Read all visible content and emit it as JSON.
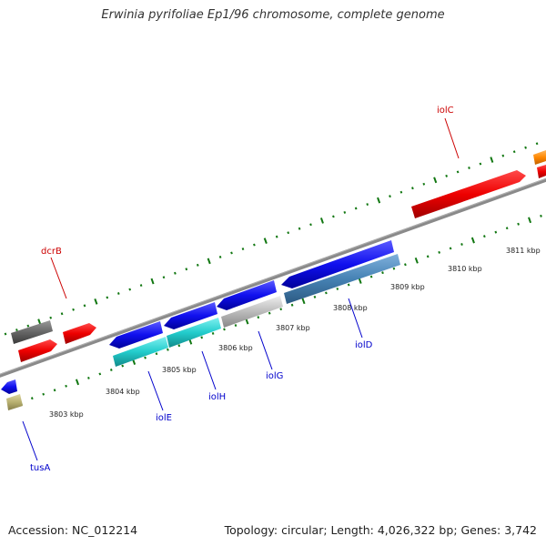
{
  "title": "Erwinia pyrifoliae Ep1/96 chromosome, complete genome",
  "footer": {
    "accession_label": "Accession:",
    "accession": "NC_012214",
    "topology_label": "Topology:",
    "topology": "circular",
    "length_label": "Length:",
    "length": "4,026,322 bp",
    "genes_label": "Genes:",
    "genes": "3,742"
  },
  "axis": {
    "tick_labels": [
      "3803 kbp",
      "3804 kbp",
      "3805 kbp",
      "3806 kbp",
      "3807 kbp",
      "3808 kbp",
      "3809 kbp",
      "3810 kbp",
      "3811 kbp"
    ]
  },
  "genes": [
    {
      "label": "iolC",
      "color": "#cc0000"
    },
    {
      "label": "dcrB",
      "color": "#cc0000"
    },
    {
      "label": "iolE",
      "color": "#0000aa"
    },
    {
      "label": "iolH",
      "color": "#0000aa"
    },
    {
      "label": "iolG",
      "color": "#0000aa"
    },
    {
      "label": "iolD",
      "color": "#0000aa"
    },
    {
      "label": "tusA",
      "color": "#0000aa"
    }
  ],
  "colors": {
    "forward_strand": "#ff0000",
    "reverse_strand": "#0000ee",
    "cyan_feature": "#22cccc",
    "steelblue_feature": "#4682b4",
    "light_gray_feature": "#bbbbbb",
    "dark_gray_feature": "#666666",
    "orange_feature": "#ff8800",
    "khaki_feature": "#b8b070",
    "tick_green": "#117711",
    "backbone": "#888888"
  }
}
